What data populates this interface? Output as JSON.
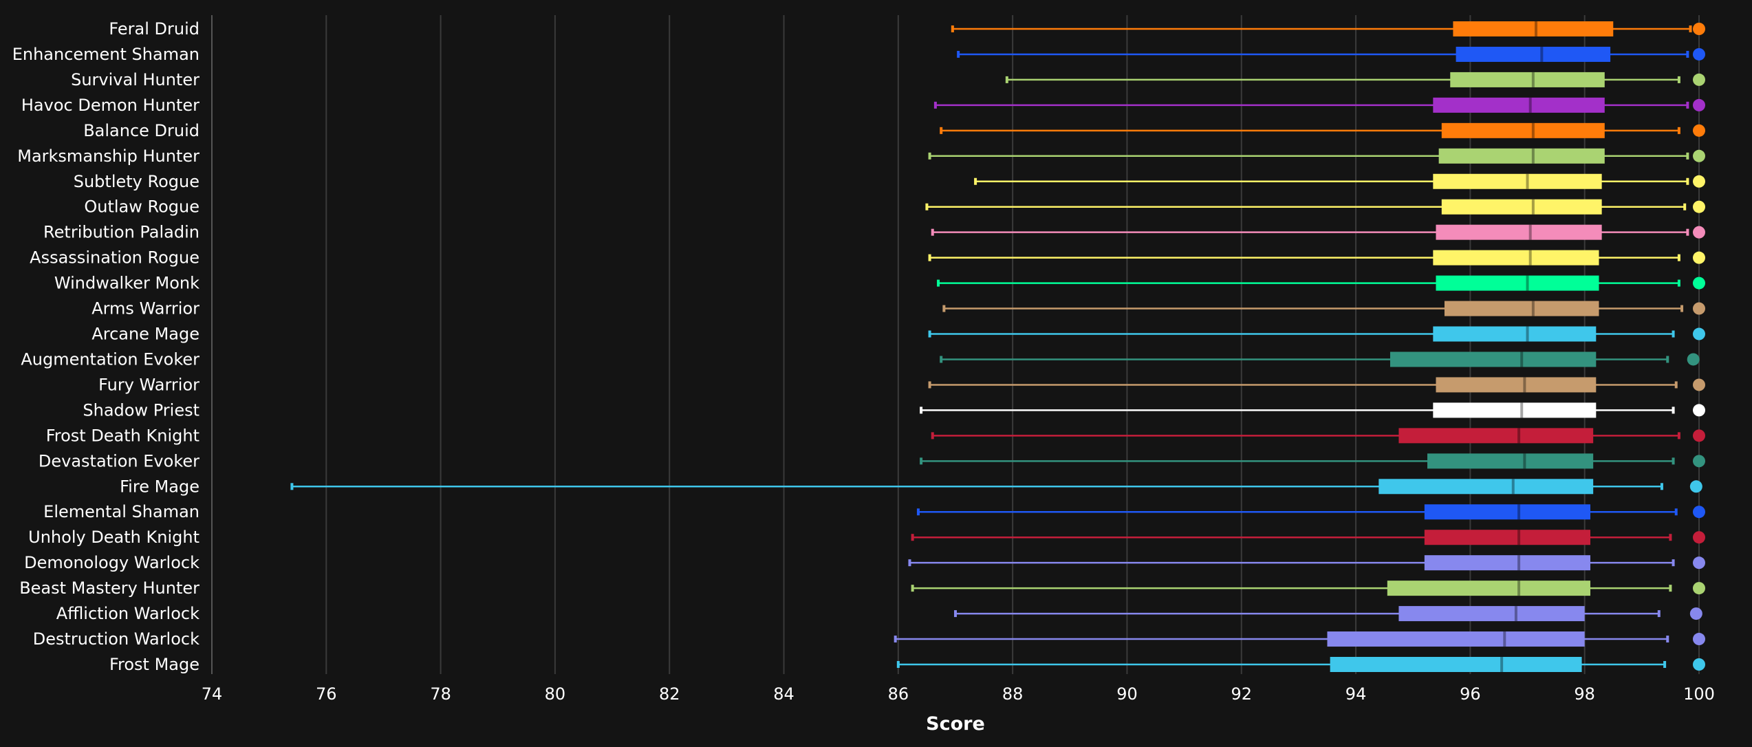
{
  "chart_data": {
    "type": "boxplot",
    "orientation": "horizontal",
    "xlabel": "Score",
    "xlim": [
      74,
      100
    ],
    "xticks": [
      74,
      76,
      78,
      80,
      82,
      84,
      86,
      88,
      90,
      92,
      94,
      96,
      98,
      100
    ],
    "grid": "vertical",
    "legend": "none",
    "series": [
      {
        "name": "Feral Druid",
        "color": "#FF7C0A",
        "min": 86.95,
        "q1": 95.7,
        "median": 97.15,
        "q3": 98.5,
        "max": 99.85,
        "top": 100.0
      },
      {
        "name": "Enhancement Shaman",
        "color": "#1F58F5",
        "min": 87.05,
        "q1": 95.75,
        "median": 97.25,
        "q3": 98.45,
        "max": 99.8,
        "top": 100.0
      },
      {
        "name": "Survival Hunter",
        "color": "#AAD372",
        "min": 87.9,
        "q1": 95.65,
        "median": 97.1,
        "q3": 98.35,
        "max": 99.65,
        "top": 100.0
      },
      {
        "name": "Havoc Demon Hunter",
        "color": "#A330C9",
        "min": 86.65,
        "q1": 95.35,
        "median": 97.05,
        "q3": 98.35,
        "max": 99.8,
        "top": 100.0
      },
      {
        "name": "Balance Druid",
        "color": "#FF7C0A",
        "min": 86.75,
        "q1": 95.5,
        "median": 97.1,
        "q3": 98.35,
        "max": 99.65,
        "top": 100.0
      },
      {
        "name": "Marksmanship Hunter",
        "color": "#AAD372",
        "min": 86.55,
        "q1": 95.45,
        "median": 97.1,
        "q3": 98.35,
        "max": 99.8,
        "top": 100.0
      },
      {
        "name": "Subtlety Rogue",
        "color": "#FFF468",
        "min": 87.35,
        "q1": 95.35,
        "median": 97.0,
        "q3": 98.3,
        "max": 99.8,
        "top": 100.0
      },
      {
        "name": "Outlaw Rogue",
        "color": "#FFF468",
        "min": 86.5,
        "q1": 95.5,
        "median": 97.1,
        "q3": 98.3,
        "max": 99.75,
        "top": 100.0
      },
      {
        "name": "Retribution Paladin",
        "color": "#F48CBA",
        "min": 86.6,
        "q1": 95.4,
        "median": 97.05,
        "q3": 98.3,
        "max": 99.8,
        "top": 100.0
      },
      {
        "name": "Assassination Rogue",
        "color": "#FFF468",
        "min": 86.55,
        "q1": 95.35,
        "median": 97.05,
        "q3": 98.25,
        "max": 99.65,
        "top": 100.0
      },
      {
        "name": "Windwalker Monk",
        "color": "#00FF98",
        "min": 86.7,
        "q1": 95.4,
        "median": 97.0,
        "q3": 98.25,
        "max": 99.65,
        "top": 100.0
      },
      {
        "name": "Arms Warrior",
        "color": "#C69B6D",
        "min": 86.8,
        "q1": 95.55,
        "median": 97.1,
        "q3": 98.25,
        "max": 99.7,
        "top": 100.0
      },
      {
        "name": "Arcane Mage",
        "color": "#3FC7EB",
        "min": 86.55,
        "q1": 95.35,
        "median": 97.0,
        "q3": 98.2,
        "max": 99.55,
        "top": 100.0
      },
      {
        "name": "Augmentation Evoker",
        "color": "#33937F",
        "min": 86.75,
        "q1": 94.6,
        "median": 96.9,
        "q3": 98.2,
        "max": 99.45,
        "top": 99.9
      },
      {
        "name": "Fury Warrior",
        "color": "#C69B6D",
        "min": 86.55,
        "q1": 95.4,
        "median": 96.95,
        "q3": 98.2,
        "max": 99.6,
        "top": 100.0
      },
      {
        "name": "Shadow Priest",
        "color": "#FFFFFF",
        "min": 86.4,
        "q1": 95.35,
        "median": 96.9,
        "q3": 98.2,
        "max": 99.55,
        "top": 100.0
      },
      {
        "name": "Frost Death Knight",
        "color": "#C41E3A",
        "min": 86.6,
        "q1": 94.75,
        "median": 96.85,
        "q3": 98.15,
        "max": 99.65,
        "top": 100.0
      },
      {
        "name": "Devastation Evoker",
        "color": "#33937F",
        "min": 86.4,
        "q1": 95.25,
        "median": 96.95,
        "q3": 98.15,
        "max": 99.55,
        "top": 100.0
      },
      {
        "name": "Fire Mage",
        "color": "#3FC7EB",
        "min": 75.4,
        "q1": 94.4,
        "median": 96.75,
        "q3": 98.15,
        "max": 99.35,
        "top": 99.95
      },
      {
        "name": "Elemental Shaman",
        "color": "#1F58F5",
        "min": 86.35,
        "q1": 95.2,
        "median": 96.85,
        "q3": 98.1,
        "max": 99.6,
        "top": 100.0
      },
      {
        "name": "Unholy Death Knight",
        "color": "#C41E3A",
        "min": 86.25,
        "q1": 95.2,
        "median": 96.85,
        "q3": 98.1,
        "max": 99.5,
        "top": 100.0
      },
      {
        "name": "Demonology Warlock",
        "color": "#8788EE",
        "min": 86.2,
        "q1": 95.2,
        "median": 96.85,
        "q3": 98.1,
        "max": 99.55,
        "top": 100.0
      },
      {
        "name": "Beast Mastery Hunter",
        "color": "#AAD372",
        "min": 86.25,
        "q1": 94.55,
        "median": 96.85,
        "q3": 98.1,
        "max": 99.5,
        "top": 100.0
      },
      {
        "name": "Affliction Warlock",
        "color": "#8788EE",
        "min": 87.0,
        "q1": 94.75,
        "median": 96.8,
        "q3": 98.0,
        "max": 99.3,
        "top": 99.95
      },
      {
        "name": "Destruction Warlock",
        "color": "#8788EE",
        "min": 85.95,
        "q1": 93.5,
        "median": 96.6,
        "q3": 98.0,
        "max": 99.45,
        "top": 100.0
      },
      {
        "name": "Frost Mage",
        "color": "#3FC7EB",
        "min": 86.0,
        "q1": 93.55,
        "median": 96.55,
        "q3": 97.95,
        "max": 99.4,
        "top": 100.0
      }
    ]
  }
}
